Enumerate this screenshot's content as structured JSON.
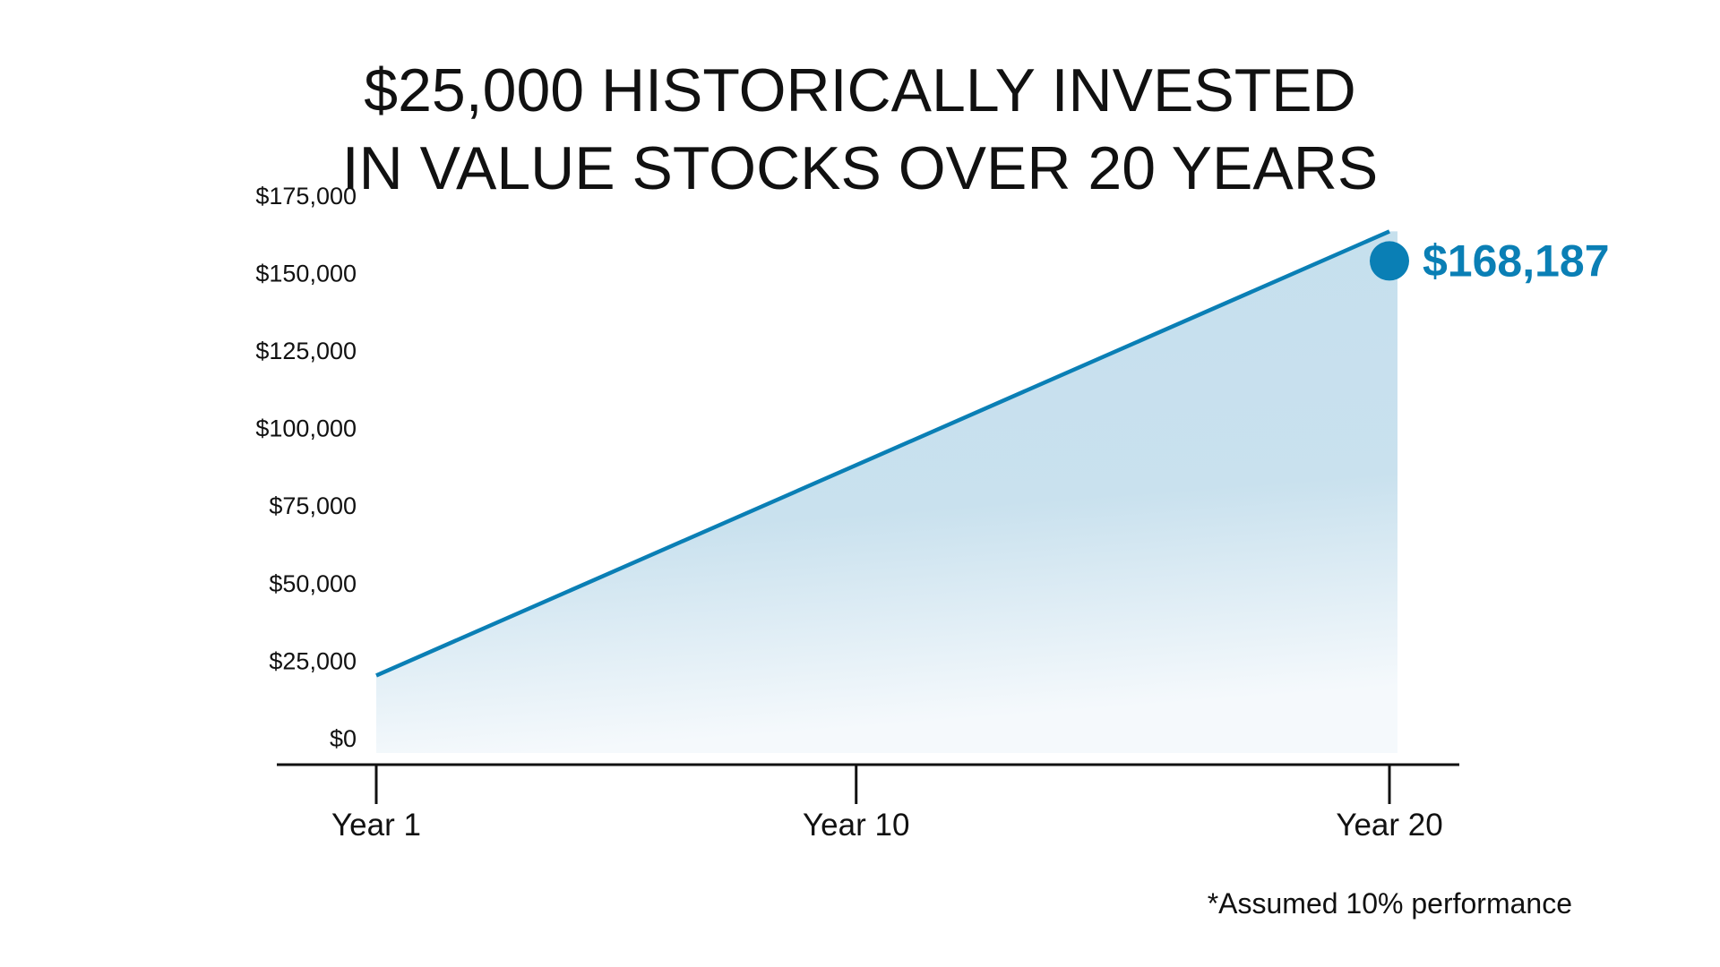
{
  "chart_data": {
    "type": "area",
    "title_lines": [
      "$25,000 HISTORICALLY INVESTED",
      "IN VALUE STOCKS OVER 20 YEARS"
    ],
    "x": [
      1,
      20
    ],
    "values": [
      25000,
      168187
    ],
    "x_ticks": [
      1,
      10,
      20
    ],
    "x_tick_labels": [
      "Year 1",
      "Year 10",
      "Year 20"
    ],
    "y_ticks": [
      0,
      25000,
      50000,
      75000,
      100000,
      125000,
      150000,
      175000
    ],
    "y_tick_labels": [
      "$0",
      "$25,000",
      "$50,000",
      "$75,000",
      "$100,000",
      "$125,000",
      "$150,000",
      "$175,000"
    ],
    "ylim": [
      0,
      175000
    ],
    "end_label": "$168,187",
    "footnote": "*Assumed 10% performance",
    "grid": true,
    "colors": {
      "line": "#0a7fb5",
      "fill": "#c5dfed",
      "label": "#0a7fb5"
    }
  }
}
